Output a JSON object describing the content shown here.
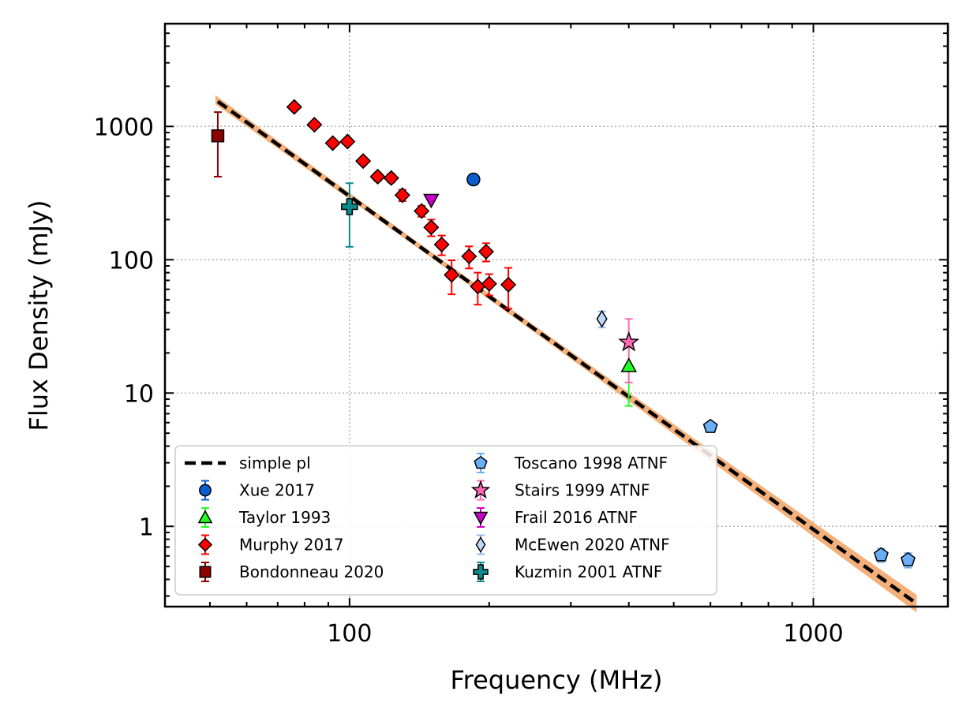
{
  "chart_data": {
    "type": "scatter",
    "title": "",
    "xlabel": "Frequency (MHz)",
    "ylabel": "Flux Density (mJy)",
    "xscale": "log",
    "yscale": "log",
    "xlim": [
      40,
      1950
    ],
    "ylim": [
      0.25,
      5900
    ],
    "x_ticks": [
      {
        "value": 100,
        "label": "100"
      },
      {
        "value": 1000,
        "label": "1000"
      }
    ],
    "y_ticks": [
      {
        "value": 1,
        "label": "1"
      },
      {
        "value": 10,
        "label": "10"
      },
      {
        "value": 100,
        "label": "100"
      },
      {
        "value": 1000,
        "label": "1000"
      }
    ],
    "grid": true,
    "legend_placement": "lower-left",
    "fit": {
      "name": "simple pl",
      "x_range": [
        52,
        1650
      ],
      "amplitude_at_100MHz": 300,
      "spectral_index": -2.5,
      "line_color": "#000000",
      "band_color": "#f4b07a"
    },
    "series": [
      {
        "name": "Xue 2017",
        "marker": "circle",
        "color": "#0a5fcf",
        "ecolor": "#0a5fcf",
        "points": [
          {
            "x": 185,
            "y": 400,
            "ylo": 400,
            "yhi": 400
          }
        ]
      },
      {
        "name": "Taylor 1993",
        "marker": "triangle-up",
        "color": "#22ff22",
        "ecolor": "#22ff22",
        "points": [
          {
            "x": 400,
            "y": 16,
            "ylo": 8,
            "yhi": 24
          }
        ]
      },
      {
        "name": "Murphy 2017",
        "marker": "diamond",
        "color": "#ff0000",
        "ecolor": "#ff0000",
        "points": [
          {
            "x": 76,
            "y": 1400,
            "ylo": 1330,
            "yhi": 1470
          },
          {
            "x": 84,
            "y": 1030,
            "ylo": 980,
            "yhi": 1080
          },
          {
            "x": 92,
            "y": 750,
            "ylo": 710,
            "yhi": 790
          },
          {
            "x": 99,
            "y": 770,
            "ylo": 730,
            "yhi": 810
          },
          {
            "x": 107,
            "y": 550,
            "ylo": 520,
            "yhi": 580
          },
          {
            "x": 115,
            "y": 420,
            "ylo": 390,
            "yhi": 450
          },
          {
            "x": 123,
            "y": 410,
            "ylo": 380,
            "yhi": 440
          },
          {
            "x": 130,
            "y": 305,
            "ylo": 275,
            "yhi": 335
          },
          {
            "x": 143,
            "y": 232,
            "ylo": 210,
            "yhi": 254
          },
          {
            "x": 150,
            "y": 175,
            "ylo": 150,
            "yhi": 200
          },
          {
            "x": 158,
            "y": 130,
            "ylo": 108,
            "yhi": 152
          },
          {
            "x": 166,
            "y": 77,
            "ylo": 55,
            "yhi": 99
          },
          {
            "x": 181,
            "y": 106,
            "ylo": 86,
            "yhi": 126
          },
          {
            "x": 189,
            "y": 63,
            "ylo": 46,
            "yhi": 80
          },
          {
            "x": 197,
            "y": 115,
            "ylo": 97,
            "yhi": 133
          },
          {
            "x": 200,
            "y": 66,
            "ylo": 54,
            "yhi": 78
          },
          {
            "x": 220,
            "y": 65,
            "ylo": 43,
            "yhi": 87
          }
        ]
      },
      {
        "name": "Bondonneau 2020",
        "marker": "square",
        "color": "#8b0000",
        "ecolor": "#8b0000",
        "points": [
          {
            "x": 52,
            "y": 850,
            "ylo": 420,
            "yhi": 1280
          }
        ]
      },
      {
        "name": "Toscano 1998 ATNF",
        "marker": "pentagon",
        "color": "#6aaef5",
        "ecolor": "#6aaef5",
        "points": [
          {
            "x": 600,
            "y": 5.6,
            "ylo": 5.6,
            "yhi": 5.6
          },
          {
            "x": 1400,
            "y": 0.61,
            "ylo": 0.54,
            "yhi": 0.68
          },
          {
            "x": 1600,
            "y": 0.56,
            "ylo": 0.49,
            "yhi": 0.63
          }
        ]
      },
      {
        "name": "Stairs 1999 ATNF",
        "marker": "star",
        "color": "#ff69b4",
        "ecolor": "#ff69b4",
        "points": [
          {
            "x": 400,
            "y": 24,
            "ylo": 12,
            "yhi": 36
          }
        ]
      },
      {
        "name": "Frail 2016 ATNF",
        "marker": "triangle-down",
        "color": "#cc00cc",
        "ecolor": "#cc00cc",
        "points": [
          {
            "x": 150,
            "y": 280,
            "ylo": 280,
            "yhi": 280
          }
        ]
      },
      {
        "name": "McEwen 2020 ATNF",
        "marker": "thin-diamond",
        "color": "#bcd8f8",
        "ecolor": "#8bbcf0",
        "points": [
          {
            "x": 350,
            "y": 36,
            "ylo": 31,
            "yhi": 41
          }
        ]
      },
      {
        "name": "Kuzmin 2001 ATNF",
        "marker": "plus",
        "color": "#0e8a8a",
        "ecolor": "#0e8a8a",
        "points": [
          {
            "x": 100,
            "y": 250,
            "ylo": 125,
            "yhi": 375
          }
        ]
      }
    ]
  }
}
